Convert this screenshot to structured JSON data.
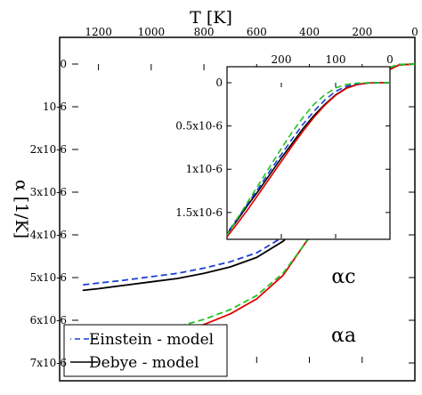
{
  "chart_data": {
    "type": "line",
    "orientation": "mirrored",
    "main": {
      "xlabel": "T [K]",
      "ylabel": "α [1/K]",
      "xlim": [
        0,
        1300
      ],
      "ylim": [
        0,
        7e-06
      ],
      "xticks": [
        0,
        200,
        400,
        600,
        800,
        1000,
        1200
      ],
      "xtick_labels": [
        "0",
        "200",
        "400",
        "600",
        "800",
        "1000",
        "1200"
      ],
      "yticks": [
        0,
        1e-06,
        2e-06,
        3e-06,
        4e-06,
        5e-06,
        6e-06,
        7e-06
      ],
      "ytick_labels": [
        "0",
        "10-6",
        "2x10-6",
        "3x10-6",
        "4x10-6",
        "5x10-6",
        "6x10-6",
        "7x10-6"
      ],
      "series": [
        {
          "name": "Debye - model",
          "branch": "αc",
          "color": "#000000",
          "dash": "solid",
          "x": [
            0,
            60,
            100,
            150,
            200,
            250,
            300,
            350,
            400,
            500,
            600,
            700,
            800,
            900,
            1000,
            1100,
            1200,
            1260
          ],
          "y": [
            0,
            2e-08,
            1.4e-07,
            5e-07,
            1.1e-06,
            1.85e-06,
            2.6e-06,
            3.1e-06,
            3.55e-06,
            4.15e-06,
            4.53e-06,
            4.75e-06,
            4.9e-06,
            5.02e-06,
            5.1e-06,
            5.18e-06,
            5.26e-06,
            5.3e-06
          ]
        },
        {
          "name": "Einstein - model",
          "branch": "αc",
          "color": "#1a3fd6",
          "dash": "dashed",
          "x": [
            0,
            60,
            100,
            150,
            200,
            250,
            300,
            350,
            400,
            500,
            600,
            700,
            800,
            900,
            1000,
            1100,
            1200,
            1260
          ],
          "y": [
            0,
            1e-08,
            9e-08,
            4e-07,
            1e-06,
            1.8e-06,
            2.55e-06,
            3.05e-06,
            3.48e-06,
            4.05e-06,
            4.42e-06,
            4.63e-06,
            4.78e-06,
            4.9e-06,
            4.98e-06,
            5.06e-06,
            5.13e-06,
            5.17e-06
          ]
        },
        {
          "name": "Debye - model",
          "branch": "αa",
          "color": "#e00000",
          "dash": "solid",
          "x": [
            0,
            60,
            100,
            150,
            200,
            250,
            300,
            350,
            400,
            500,
            600,
            700,
            800,
            900,
            1000,
            1100,
            1200,
            1260
          ],
          "y": [
            0,
            2e-08,
            1.4e-07,
            5e-07,
            1.1e-06,
            1.85e-06,
            2.7e-06,
            3.4e-06,
            4.05e-06,
            4.95e-06,
            5.5e-06,
            5.85e-06,
            6.1e-06,
            6.28e-06,
            6.42e-06,
            6.52e-06,
            6.62e-06,
            6.67e-06
          ]
        },
        {
          "name": "Einstein - model",
          "branch": "αa",
          "color": "#22c222",
          "dash": "dashed",
          "x": [
            0,
            60,
            100,
            150,
            200,
            250,
            300,
            350,
            400,
            500,
            600,
            700,
            800,
            900,
            1000,
            1100,
            1200,
            1260
          ],
          "y": [
            0,
            1e-08,
            9e-08,
            4e-07,
            1e-06,
            1.8e-06,
            2.75e-06,
            3.45e-06,
            4.07e-06,
            4.9e-06,
            5.42e-06,
            5.75e-06,
            5.98e-06,
            6.15e-06,
            6.28e-06,
            6.38e-06,
            6.46e-06,
            6.51e-06
          ]
        }
      ]
    },
    "inset": {
      "xlim": [
        0,
        300
      ],
      "ylim": [
        0,
        1.8e-06
      ],
      "xticks": [
        0,
        100,
        200
      ],
      "xtick_labels": [
        "0",
        "100",
        "200"
      ],
      "yticks": [
        0,
        5e-07,
        1e-06,
        1.5e-06
      ],
      "ytick_labels": [
        "0",
        "0.5x10-6",
        "1x10-6",
        "1.5x10-6"
      ],
      "series": [
        {
          "color": "#000000",
          "dash": "solid",
          "x": [
            0,
            20,
            40,
            60,
            80,
            100,
            120,
            140,
            160,
            180,
            200,
            220,
            240,
            260,
            280,
            300
          ],
          "y": [
            0,
            0.0,
            3e-09,
            2e-08,
            6e-08,
            1.4e-07,
            2.5e-07,
            3.8e-07,
            5.3e-07,
            7e-07,
            8.7e-07,
            1.05e-06,
            1.23e-06,
            1.4e-06,
            1.58e-06,
            1.75e-06
          ]
        },
        {
          "color": "#e00000",
          "dash": "solid",
          "x": [
            0,
            20,
            40,
            60,
            80,
            100,
            120,
            140,
            160,
            180,
            200,
            220,
            240,
            260,
            280,
            300
          ],
          "y": [
            0,
            0.0,
            3e-09,
            2.2e-08,
            6.5e-08,
            1.45e-07,
            2.6e-07,
            4e-07,
            5.6e-07,
            7.3e-07,
            9.1e-07,
            1.09e-06,
            1.27e-06,
            1.45e-06,
            1.62e-06,
            1.78e-06
          ]
        },
        {
          "color": "#1a3fd6",
          "dash": "dashed",
          "x": [
            0,
            20,
            40,
            60,
            80,
            100,
            120,
            140,
            160,
            180,
            200,
            220,
            240,
            260,
            280,
            300
          ],
          "y": [
            0,
            0.0,
            1e-09,
            1e-08,
            4e-08,
            1e-07,
            2e-07,
            3.3e-07,
            4.8e-07,
            6.5e-07,
            8.3e-07,
            1.01e-06,
            1.2e-06,
            1.38e-06,
            1.56e-06,
            1.74e-06
          ]
        },
        {
          "color": "#22c222",
          "dash": "dashed",
          "x": [
            0,
            20,
            40,
            60,
            80,
            100,
            120,
            140,
            160,
            180,
            200,
            220,
            240,
            260,
            280,
            300
          ],
          "y": [
            0,
            0.0,
            0.0,
            4e-09,
            2e-08,
            6e-08,
            1.4e-07,
            2.5e-07,
            4e-07,
            5.7e-07,
            7.6e-07,
            9.6e-07,
            1.16e-06,
            1.36e-06,
            1.56e-06,
            1.76e-06
          ]
        }
      ]
    },
    "legend": {
      "placement": "bottom-left",
      "entries": [
        {
          "label": "Einstein - model",
          "color": "#1a3fd6",
          "dash": "dashed"
        },
        {
          "label": "Debye - model",
          "color": "#000000",
          "dash": "solid"
        }
      ]
    },
    "annotations": [
      {
        "text": "αc",
        "near": "upper branch end"
      },
      {
        "text": "αa",
        "near": "lower branch end"
      }
    ]
  }
}
